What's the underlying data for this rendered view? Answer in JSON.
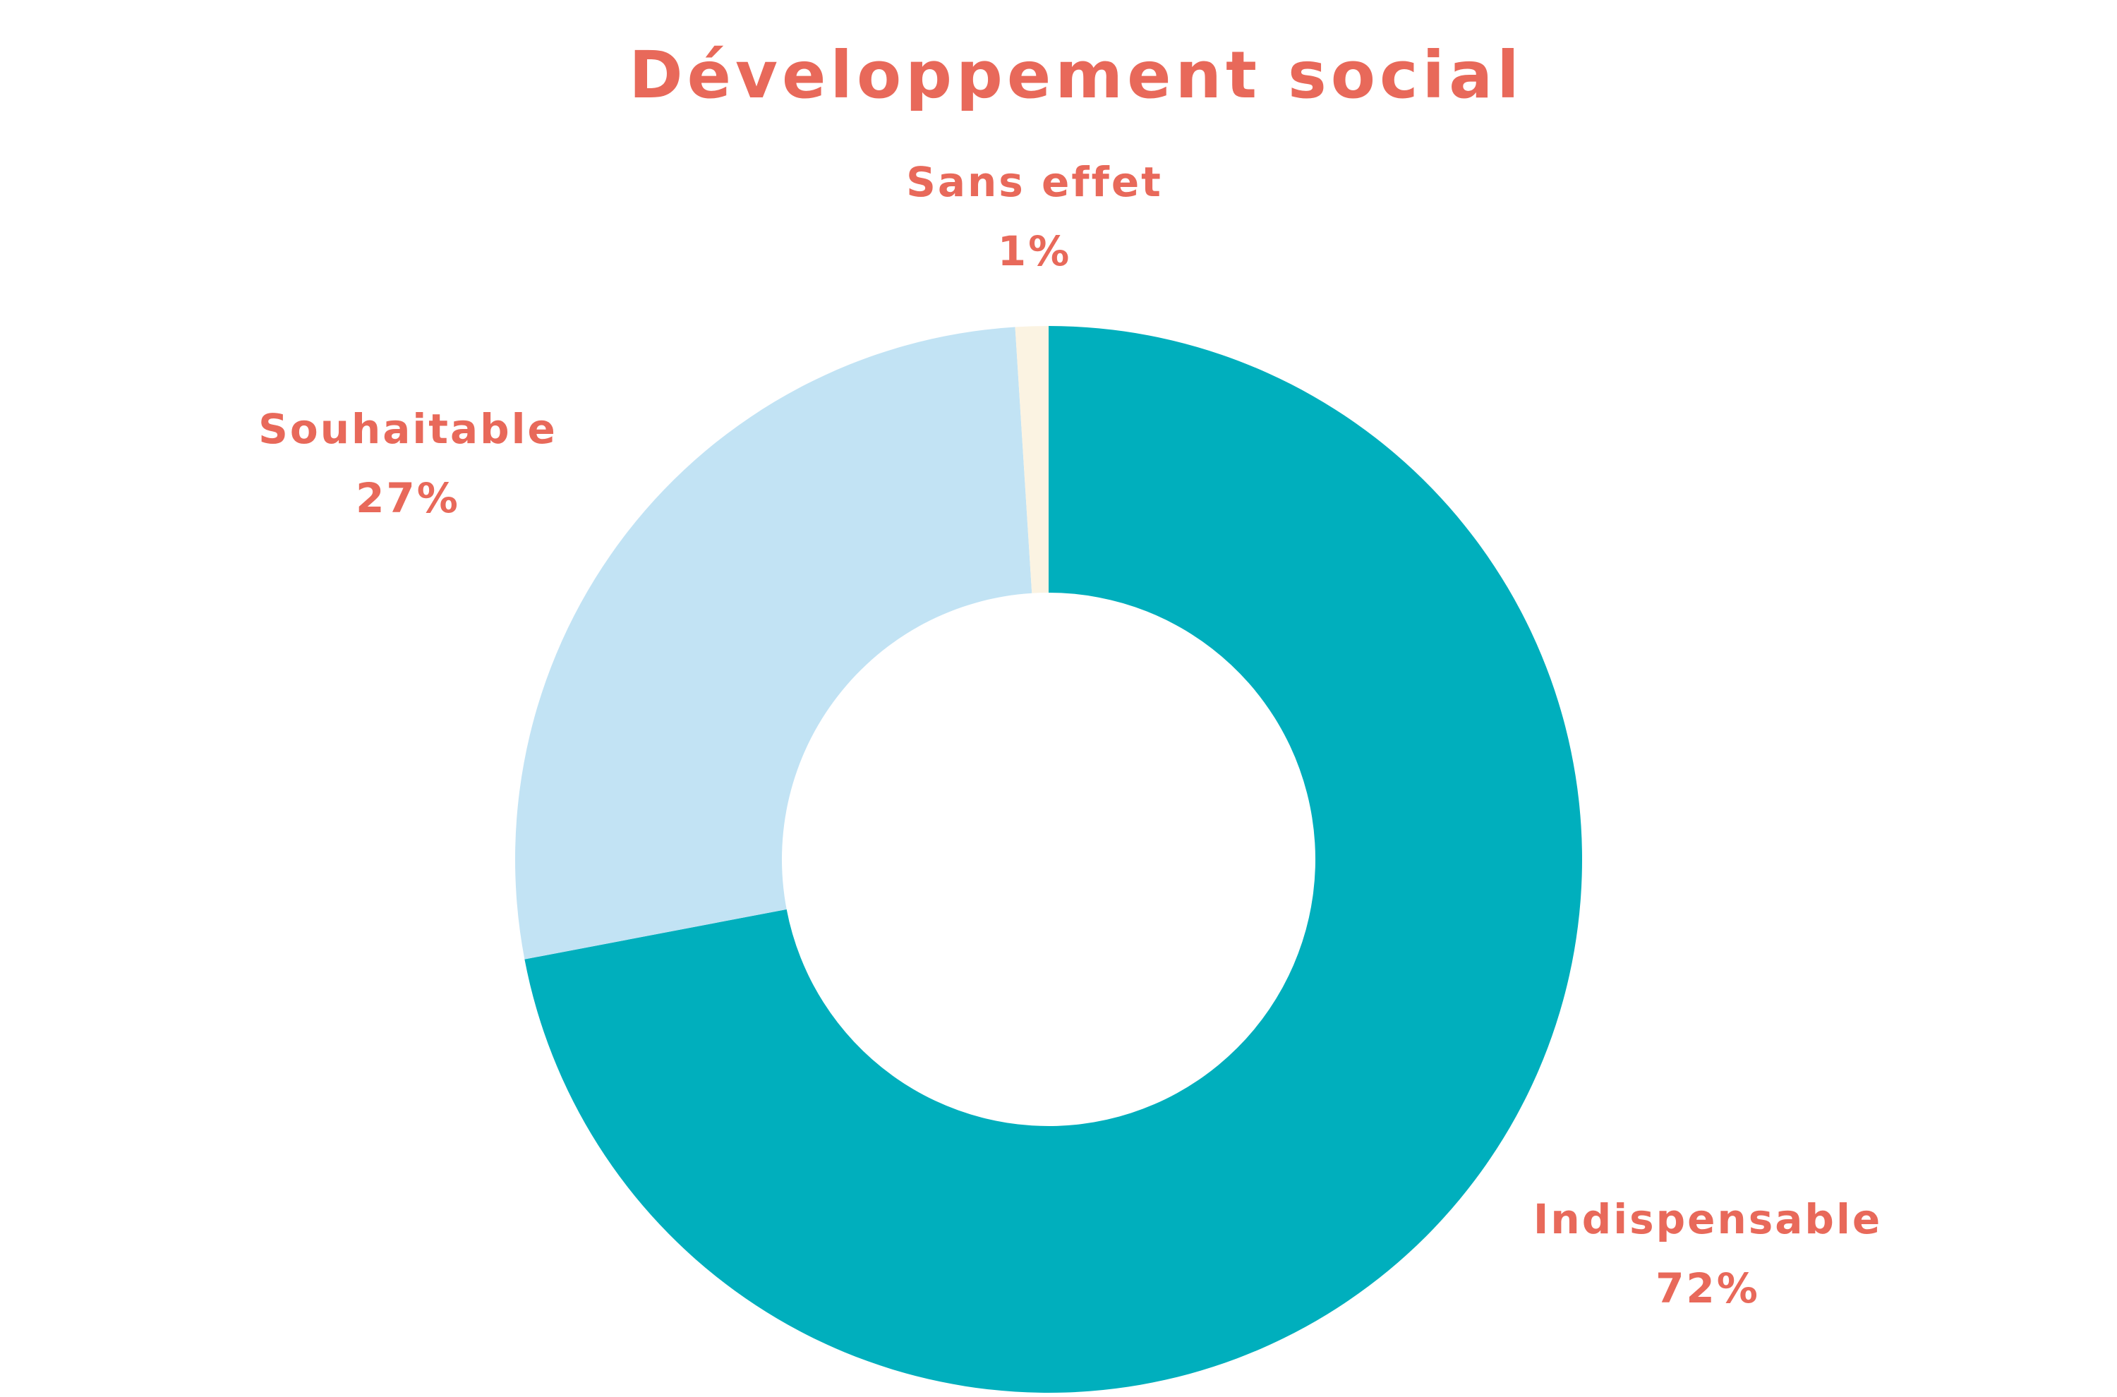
{
  "chart_data": {
    "type": "pie",
    "donut": true,
    "title": "Développement social",
    "slices": [
      {
        "label": "Indispensable",
        "value": 72,
        "value_label": "72%",
        "color": "#00AFBD"
      },
      {
        "label": "Souhaitable",
        "value": 27,
        "value_label": "27%",
        "color": "#C2E3F4"
      },
      {
        "label": "Sans effet",
        "value": 1,
        "value_label": "1%",
        "color": "#FBF3E2"
      }
    ],
    "start": "top",
    "direction": "clockwise",
    "legend": "none",
    "text_color": "#E8695A"
  }
}
